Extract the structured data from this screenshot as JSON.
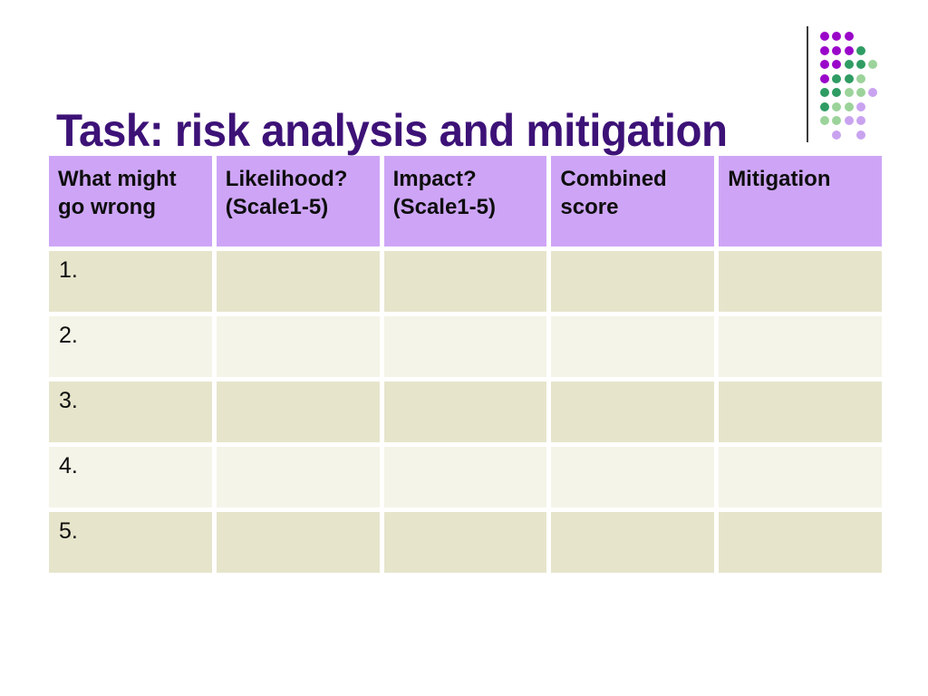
{
  "slide": {
    "title": "Task: risk analysis and mitigation"
  },
  "table": {
    "column_headers": [
      "What might\ngo wrong",
      "Likelihood?\n(Scale1-5)",
      "Impact?\n(Scale1-5)",
      "Combined\nscore",
      "Mitigation"
    ],
    "rows": [
      {
        "label": "1.",
        "cells": [
          "",
          "",
          "",
          ""
        ]
      },
      {
        "label": "2.",
        "cells": [
          "",
          "",
          "",
          ""
        ]
      },
      {
        "label": "3.",
        "cells": [
          "",
          "",
          "",
          ""
        ]
      },
      {
        "label": "4.",
        "cells": [
          "",
          "",
          "",
          ""
        ]
      },
      {
        "label": "5.",
        "cells": [
          "",
          "",
          "",
          ""
        ]
      }
    ]
  },
  "colors": {
    "title_text": "#3D1277",
    "header_cell_bg": "#CEA5F6",
    "row_odd_bg": "#E6E5CB",
    "row_even_bg": "#F5F4E8",
    "cell_text": "#0E0E0E",
    "rule": "#3b3b3b"
  },
  "decoration": {
    "motif": "dots-motif",
    "dot_colors": {
      "P": "#9A06C9",
      "G": "#2F9C63",
      "LG": "#9CD39B",
      "LP": "#C9A3F0"
    },
    "dot_grid": [
      [
        "P",
        "P",
        "P",
        "",
        ""
      ],
      [
        "P",
        "P",
        "P",
        "G",
        ""
      ],
      [
        "P",
        "P",
        "G",
        "G",
        "LG"
      ],
      [
        "P",
        "G",
        "G",
        "LG",
        ""
      ],
      [
        "G",
        "G",
        "LG",
        "LG",
        "LP"
      ],
      [
        "G",
        "LG",
        "LG",
        "LP",
        ""
      ],
      [
        "LG",
        "LG",
        "LP",
        "LP",
        ""
      ],
      [
        "",
        "LP",
        "",
        "LP",
        ""
      ]
    ]
  }
}
